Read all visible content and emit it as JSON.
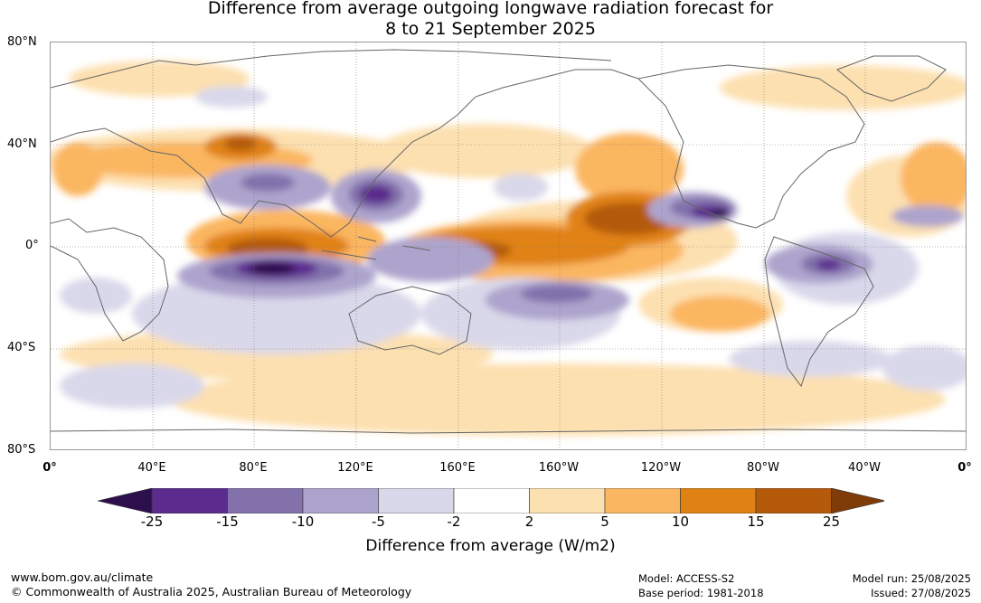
{
  "title_line1": "Difference from average outgoing longwave radiation forecast for",
  "title_line2": "8 to 21 September 2025",
  "lat_labels": [
    "80°N",
    "40°N",
    "0°",
    "40°S",
    "80°S"
  ],
  "lon_labels": [
    "0°",
    "40°E",
    "80°E",
    "120°E",
    "160°E",
    "160°W",
    "120°W",
    "80°W",
    "40°W",
    "0°"
  ],
  "colorbar": {
    "ticks": [
      "-25",
      "-15",
      "-10",
      "-5",
      "-2",
      "2",
      "5",
      "10",
      "15",
      "25"
    ],
    "colors": [
      "#2d0f4e",
      "#5b2b8e",
      "#8271ab",
      "#ada4cd",
      "#d9d8ea",
      "#ffffff",
      "#fde0b0",
      "#fbb661",
      "#e08213",
      "#b45a0a",
      "#7f3b08"
    ],
    "label": "Difference from average (W/m2)"
  },
  "footer": {
    "website": "www.bom.gov.au/climate",
    "copyright": "© Commonwealth of Australia 2025, Australian Bureau of Meteorology",
    "model": "Model: ACCESS-S2",
    "base_period": "Base period: 1981-2018",
    "model_run": "Model run: 25/08/2025",
    "issued": "Issued: 27/08/2025"
  }
}
